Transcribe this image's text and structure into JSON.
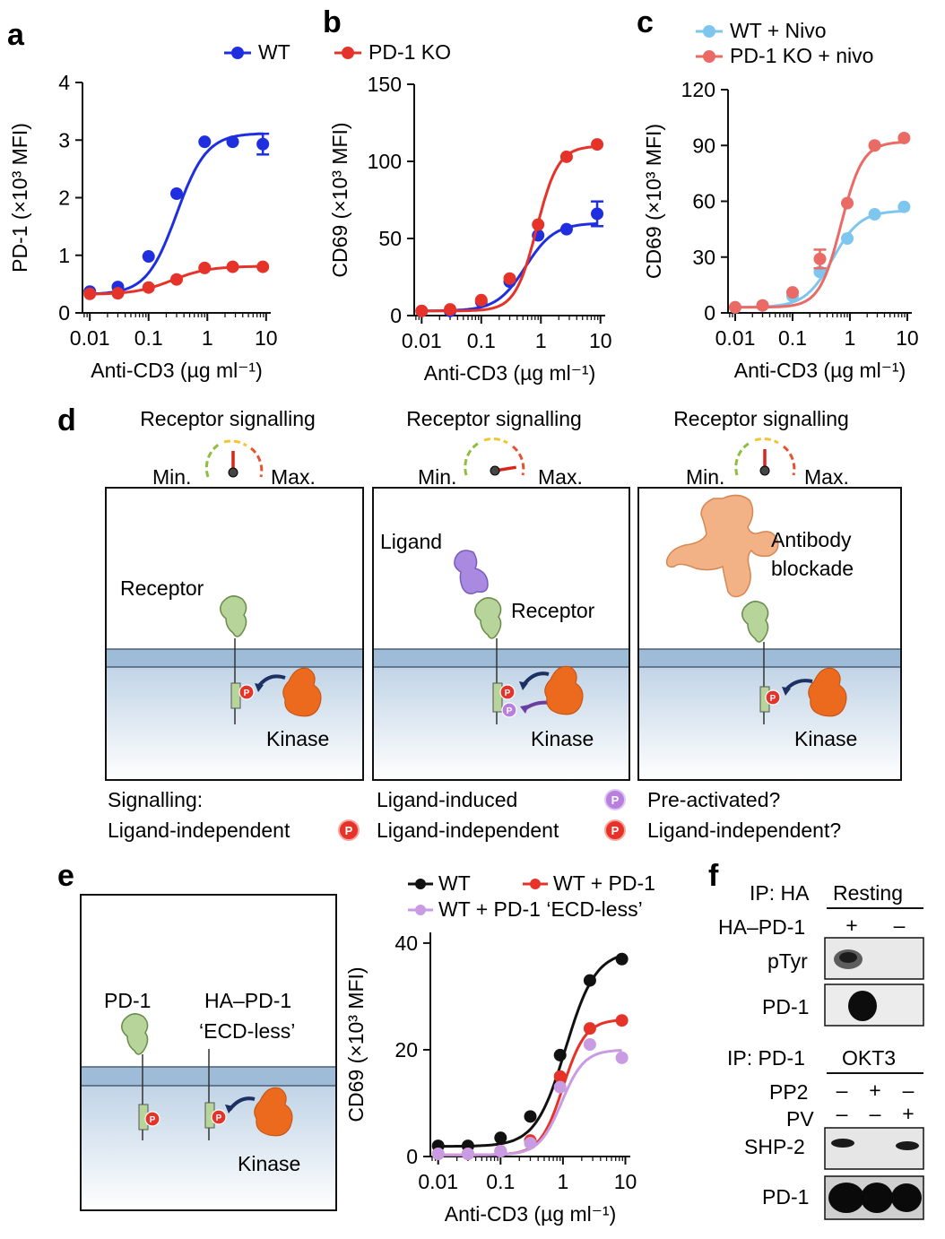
{
  "panels": {
    "a": "a",
    "b": "b",
    "c": "c",
    "d": "d",
    "e": "e",
    "f": "f"
  },
  "chart_data": [
    {
      "id": "a",
      "type": "line",
      "xlabel": "Anti-CD3 (µg ml⁻¹)",
      "ylabel": "PD-1 (×10³ MFI)",
      "xscale": "log",
      "xlim": [
        0.0075,
        12
      ],
      "ylim": [
        0,
        4
      ],
      "xticks": [
        0.01,
        0.1,
        1,
        10
      ],
      "xticklabels": [
        "0.01",
        "0.1",
        "1",
        "10"
      ],
      "yticks": [
        0,
        1,
        2,
        3,
        4
      ],
      "yticklabels": [
        "0",
        "1",
        "2",
        "3",
        "4"
      ],
      "legend_position": "top",
      "x": [
        0.01,
        0.03,
        0.1,
        0.3,
        0.9,
        2.7,
        8.8
      ],
      "series": [
        {
          "name": "WT",
          "color": "#1f2fe0",
          "values": [
            0.37,
            0.45,
            0.98,
            2.07,
            2.97,
            2.97,
            2.93
          ],
          "errors": [
            0,
            0,
            0,
            0,
            0,
            0,
            0.18
          ],
          "fit": {
            "bottom": 0.32,
            "top": 3.12,
            "ec50": 0.3,
            "hill": 1.7
          }
        },
        {
          "name": "PD-1 KO",
          "color": "#e5332a",
          "values": [
            0.33,
            0.34,
            0.44,
            0.58,
            0.78,
            0.8,
            0.8
          ],
          "errors": [
            0,
            0,
            0,
            0,
            0,
            0,
            0
          ],
          "fit": {
            "bottom": 0.32,
            "top": 0.81,
            "ec50": 0.25,
            "hill": 1.4
          }
        }
      ]
    },
    {
      "id": "b",
      "type": "line",
      "xlabel": "Anti-CD3 (µg ml⁻¹)",
      "ylabel": "CD69 (×10³ MFI)",
      "xscale": "log",
      "xlim": [
        0.0075,
        12
      ],
      "ylim": [
        0,
        150
      ],
      "xticks": [
        0.01,
        0.1,
        1,
        10
      ],
      "xticklabels": [
        "0.01",
        "0.1",
        "1",
        "10"
      ],
      "yticks": [
        0,
        50,
        100,
        150
      ],
      "yticklabels": [
        "0",
        "50",
        "100",
        "150"
      ],
      "x": [
        0.01,
        0.03,
        0.1,
        0.3,
        0.9,
        2.7,
        8.8
      ],
      "series": [
        {
          "name": "WT",
          "color": "#1f2fe0",
          "values": [
            3,
            3,
            9,
            22,
            52,
            56,
            66
          ],
          "errors": [
            0,
            0,
            0,
            0,
            0,
            0,
            8
          ],
          "fit": {
            "bottom": 3,
            "top": 60,
            "ec50": 0.55,
            "hill": 1.8
          }
        },
        {
          "name": "PD-1 KO",
          "color": "#e5332a",
          "values": [
            3,
            4,
            10,
            24,
            59,
            103,
            111
          ],
          "errors": [
            0,
            0,
            0,
            0,
            0,
            0,
            0
          ],
          "fit": {
            "bottom": 3,
            "top": 110,
            "ec50": 0.85,
            "hill": 2.4
          }
        }
      ]
    },
    {
      "id": "c",
      "type": "line",
      "xlabel": "Anti-CD3 (µg ml⁻¹)",
      "ylabel": "CD69 (×10³ MFI)",
      "xscale": "log",
      "xlim": [
        0.0075,
        12
      ],
      "ylim": [
        0,
        120
      ],
      "xticks": [
        0.01,
        0.1,
        1,
        10
      ],
      "xticklabels": [
        "0.01",
        "0.1",
        "1",
        "10"
      ],
      "yticks": [
        0,
        30,
        60,
        90,
        120
      ],
      "yticklabels": [
        "0",
        "30",
        "60",
        "90",
        "120"
      ],
      "legend_position": "top",
      "x": [
        0.01,
        0.03,
        0.1,
        0.3,
        0.9,
        2.7,
        8.8
      ],
      "series": [
        {
          "name": "WT + Nivo",
          "color": "#7ec6ee",
          "values": [
            3,
            4,
            9,
            22,
            40,
            53,
            57
          ],
          "errors": [
            0,
            0,
            0,
            0,
            0,
            0,
            0
          ],
          "fit": {
            "bottom": 3,
            "top": 55,
            "ec50": 0.5,
            "hill": 1.8
          }
        },
        {
          "name": "PD-1 KO + nivo",
          "color": "#ea6a66",
          "values": [
            3,
            4,
            11,
            29,
            59,
            90,
            94
          ],
          "errors": [
            0,
            0,
            0,
            5,
            0,
            0,
            0
          ],
          "fit": {
            "bottom": 3,
            "top": 92,
            "ec50": 0.7,
            "hill": 2.3
          }
        }
      ]
    },
    {
      "id": "e",
      "type": "line",
      "xlabel": "Anti-CD3 (µg ml⁻¹)",
      "ylabel": "CD69 (×10³ MFI)",
      "xscale": "log",
      "xlim": [
        0.0075,
        12
      ],
      "ylim": [
        0,
        42
      ],
      "xticks": [
        0.01,
        0.1,
        1,
        10
      ],
      "xticklabels": [
        "0.01",
        "0.1",
        "1",
        "10"
      ],
      "yticks": [
        0,
        20,
        40
      ],
      "yticklabels": [
        "0",
        "20",
        "40"
      ],
      "legend_position": "top",
      "x": [
        0.01,
        0.03,
        0.1,
        0.3,
        0.9,
        2.7,
        8.8
      ],
      "series": [
        {
          "name": "WT",
          "color": "#111111",
          "values": [
            2,
            2,
            3.5,
            7.5,
            19,
            33,
            37
          ],
          "errors": [
            0,
            0,
            0,
            0,
            0,
            0,
            0
          ],
          "fit": {
            "bottom": 1.9,
            "top": 38.5,
            "ec50": 1.1,
            "hill": 1.8
          }
        },
        {
          "name": "WT + PD-1",
          "color": "#e5332a",
          "values": [
            0.5,
            0.5,
            1,
            3,
            15,
            24,
            25.5
          ],
          "errors": [
            0,
            0,
            0,
            0,
            0,
            0,
            0
          ],
          "fit": {
            "bottom": 0.3,
            "top": 25.7,
            "ec50": 1.0,
            "hill": 2.4
          }
        },
        {
          "name": "WT + PD-1 ‘ECD-less’",
          "color": "#c99be3",
          "values": [
            0.5,
            0.5,
            1,
            2.5,
            13,
            21,
            18.5
          ],
          "errors": [
            0,
            0,
            0,
            0,
            0,
            0,
            0
          ],
          "fit": {
            "bottom": 0.3,
            "top": 20,
            "ec50": 0.95,
            "hill": 2.4
          }
        }
      ]
    }
  ],
  "panel_d": {
    "gauge_title": "Receptor signalling",
    "gauge_min": "Min.",
    "gauge_max": "Max.",
    "gauge_levels": [
      0.5,
      0.95,
      0.5
    ],
    "box1": {
      "receptor": "Receptor",
      "kinase": "Kinase"
    },
    "box2": {
      "ligand": "Ligand",
      "receptor": "Receptor",
      "kinase": "Kinase"
    },
    "box3": {
      "antibody": "Antibody",
      "blockade": "blockade",
      "kinase": "Kinase"
    },
    "p_symbol": "P",
    "bottom": {
      "signalling": "Signalling:",
      "col1": "Ligand-independent",
      "col2_a": "Ligand-induced",
      "col2_b": "Ligand-independent",
      "col3_a": "Pre-activated?",
      "col3_b": "Ligand-independent?"
    }
  },
  "panel_e": {
    "pd1": "PD-1",
    "ha_pd1": "HA–PD-1",
    "ecd_less": "‘ECD-less’",
    "kinase": "Kinase"
  },
  "panel_f": {
    "ip_ha": "IP: HA",
    "resting": "Resting",
    "ha_pd1": "HA–PD-1",
    "plus": "+",
    "minus": "–",
    "ptyr": "pTyr",
    "pd1": "PD-1",
    "ip_pd1": "IP: PD-1",
    "okt3": "OKT3",
    "pp2": "PP2",
    "pv": "PV",
    "shp2": "SHP-2",
    "pd1_b": "PD-1"
  }
}
